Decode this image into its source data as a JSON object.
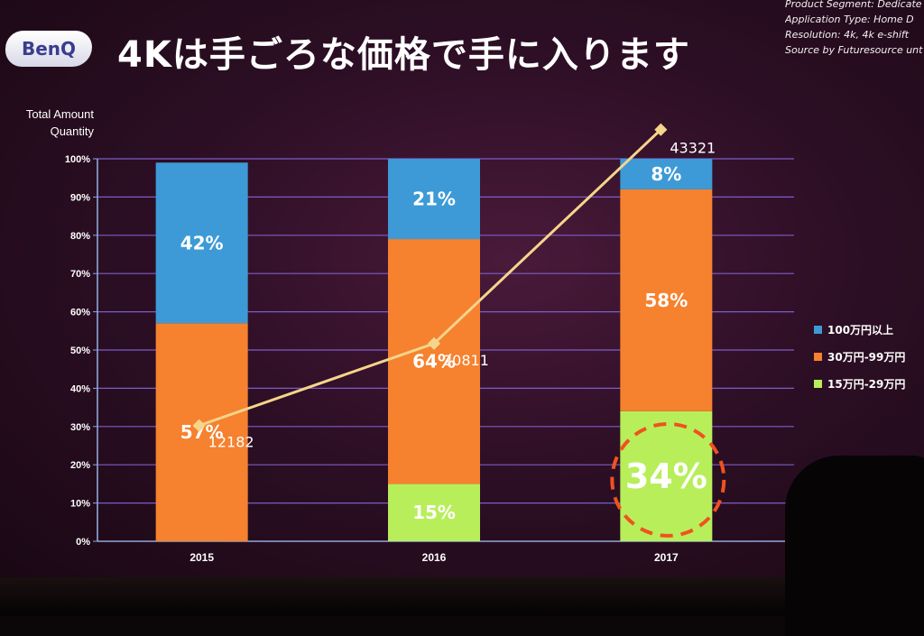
{
  "slide": {
    "logo_text": "BenQ",
    "title": "4Kは手ごろな価格で手に入ります",
    "meta_lines": [
      "Product Segment:  Dedicate",
      "Application Type:  Home D",
      "Resolution:  4k, 4k e-shift",
      "Source by Futuresource unt"
    ]
  },
  "chart_data": {
    "type": "bar",
    "stacked": true,
    "percent": true,
    "categories": [
      "2015",
      "2016",
      "2017"
    ],
    "ylabel": "Total Amount Quantity",
    "ylim": [
      0,
      100
    ],
    "yticks": [
      "0%",
      "10%",
      "20%",
      "30%",
      "40%",
      "50%",
      "60%",
      "70%",
      "80%",
      "90%",
      "100%"
    ],
    "series": [
      {
        "name": "15万円-29万円",
        "color": "#b8ee5a",
        "values": [
          0,
          15,
          34
        ],
        "labels": [
          "",
          "15%",
          "34%"
        ]
      },
      {
        "name": "30万円-99万円",
        "color": "#f6812e",
        "values": [
          57,
          64,
          58
        ],
        "labels": [
          "57%",
          "64%",
          "58%"
        ]
      },
      {
        "name": "100万円以上",
        "color": "#3d9ad6",
        "values": [
          42,
          21,
          8
        ],
        "labels": [
          "42%",
          "21%",
          "8%"
        ]
      }
    ],
    "line": {
      "color": "#f5d58a",
      "values": [
        12182,
        20811,
        43321
      ],
      "labels": [
        "12182",
        "20811",
        "43321"
      ]
    },
    "highlight": {
      "category": "2017",
      "series": "15万円-29万円",
      "color": "#f0521e"
    },
    "grid": true,
    "legend": "right"
  }
}
